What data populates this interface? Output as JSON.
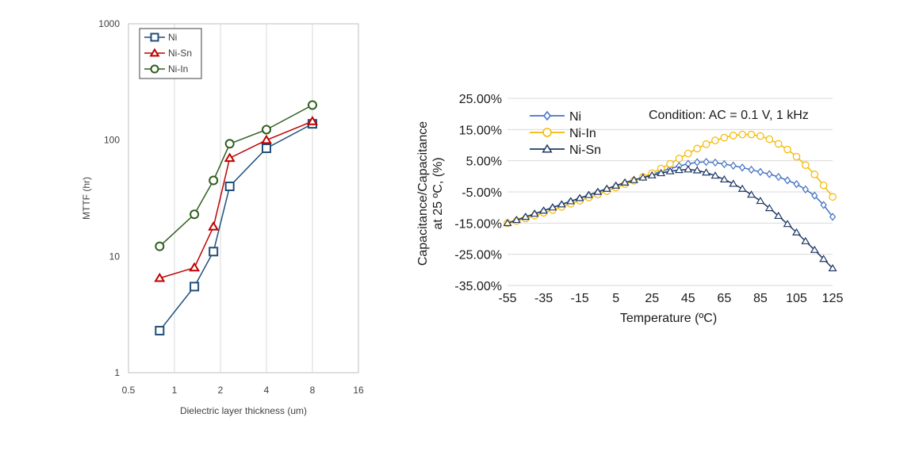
{
  "chart_data": [
    {
      "type": "line",
      "xscale": "log2",
      "yscale": "log10",
      "xlabel": "Dielectric layer thickness (um)",
      "ylabel": "MTTF (hr)",
      "xlim": [
        0.5,
        16
      ],
      "ylim": [
        1,
        1000
      ],
      "xticks": [
        0.5,
        1,
        2,
        4,
        8,
        16
      ],
      "yticks": [
        1,
        10,
        100,
        1000
      ],
      "xtick_labels": [
        "0.5",
        "1",
        "2",
        "4",
        "8",
        "16"
      ],
      "ytick_labels": [
        "1",
        "10",
        "100",
        "1000"
      ],
      "grid": "vertical",
      "legend_position": "top-left",
      "series": [
        {
          "name": "Ni",
          "marker": "square",
          "color": "#1f4e79",
          "x": [
            0.8,
            1.35,
            1.8,
            2.3,
            4,
            8
          ],
          "y": [
            2.3,
            5.5,
            11,
            40,
            85,
            138
          ]
        },
        {
          "name": "Ni-Sn",
          "marker": "triangle",
          "color": "#c00000",
          "x": [
            0.8,
            1.35,
            1.8,
            2.3,
            4,
            8
          ],
          "y": [
            6.5,
            8,
            18,
            70,
            100,
            145
          ]
        },
        {
          "name": "Ni-In",
          "marker": "circle",
          "color": "#2e5e1e",
          "x": [
            0.8,
            1.35,
            1.8,
            2.3,
            4,
            8
          ],
          "y": [
            12.2,
            23,
            45,
            93,
            123,
            200
          ]
        }
      ]
    },
    {
      "type": "line",
      "xlabel": "Temperature (ºC)",
      "ylabel": [
        "Capacitance/Capacitance",
        "at 25 ºC, (%)"
      ],
      "annotation": "Condition: AC = 0.1 V, 1 kHz",
      "xlim": [
        -55,
        125
      ],
      "ylim": [
        -35,
        25
      ],
      "xticks": [
        -55,
        -35,
        -15,
        5,
        25,
        45,
        65,
        85,
        105,
        125
      ],
      "xtick_labels": [
        "-55",
        "-35",
        "-15",
        "5",
        "25",
        "45",
        "65",
        "85",
        "105",
        "125"
      ],
      "yticks": [
        25,
        15,
        5,
        -5,
        -15,
        -25,
        -35
      ],
      "ytick_labels": [
        "25.00%",
        "15.00%",
        "5.00%",
        "-5.00%",
        "-15.00%",
        "-25.00%",
        "-35.00%"
      ],
      "grid": "horizontal",
      "legend_position": "top-left",
      "x": [
        -55,
        -50,
        -45,
        -40,
        -35,
        -30,
        -25,
        -20,
        -15,
        -10,
        -5,
        0,
        5,
        10,
        15,
        20,
        25,
        30,
        35,
        40,
        45,
        50,
        55,
        60,
        65,
        70,
        75,
        80,
        85,
        90,
        95,
        100,
        105,
        110,
        115,
        120,
        125
      ],
      "series": [
        {
          "name": "Ni",
          "marker": "diamond",
          "color": "#4472c4",
          "values": [
            -15,
            -14,
            -13,
            -12,
            -11,
            -10,
            -9,
            -8,
            -7,
            -6,
            -5,
            -4,
            -3,
            -2,
            -1.2,
            -0.3,
            0.7,
            1.5,
            2.5,
            3.3,
            4,
            4.5,
            4.6,
            4.4,
            3.9,
            3.4,
            2.8,
            2.1,
            1.4,
            0.7,
            -0.2,
            -1.3,
            -2.5,
            -4.2,
            -6.2,
            -9.2,
            -13
          ]
        },
        {
          "name": "Ni-In",
          "marker": "circle",
          "color": "#f5b800",
          "values": [
            -15,
            -14.3,
            -13.5,
            -12.6,
            -11.7,
            -10.8,
            -9.8,
            -8.8,
            -7.8,
            -6.8,
            -5.8,
            -4.7,
            -3.6,
            -2.5,
            -1.4,
            -0.2,
            1,
            2.5,
            4,
            5.7,
            7.3,
            8.9,
            10.3,
            11.5,
            12.4,
            13.1,
            13.4,
            13.4,
            12.9,
            11.9,
            10.4,
            8.6,
            6.3,
            3.6,
            0.6,
            -2.9,
            -6.6
          ]
        },
        {
          "name": "Ni-Sn",
          "marker": "triangle",
          "color": "#1f3864",
          "values": [
            -15,
            -14,
            -13,
            -12,
            -11,
            -10,
            -9,
            -8,
            -7,
            -6,
            -5,
            -4,
            -3,
            -2,
            -1.2,
            -0.4,
            0.3,
            1,
            1.6,
            2,
            2.2,
            1.9,
            1.2,
            0.2,
            -1,
            -2.4,
            -4,
            -5.9,
            -7.9,
            -10.2,
            -12.7,
            -15.3,
            -18,
            -20.8,
            -23.6,
            -26.5,
            -29.5
          ]
        }
      ]
    }
  ]
}
